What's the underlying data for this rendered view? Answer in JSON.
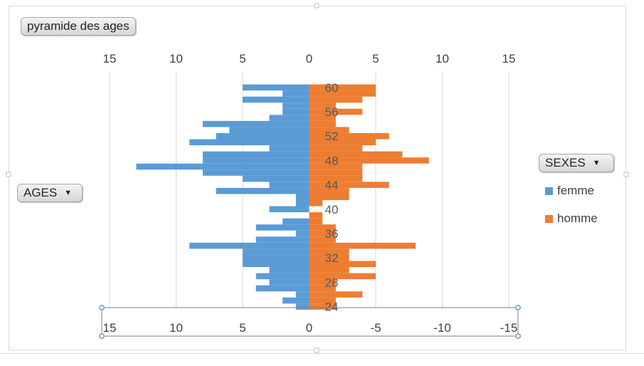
{
  "buttons": {
    "title": "pyramide des ages",
    "ages": "AGES",
    "sexes": "SEXES"
  },
  "legend": [
    {
      "label": "femme",
      "color": "#5B9BD5"
    },
    {
      "label": "homme",
      "color": "#ED7D31"
    }
  ],
  "chart_data": {
    "type": "bar",
    "orientation": "horizontal",
    "categories": [
      24,
      25,
      26,
      27,
      28,
      29,
      30,
      31,
      32,
      33,
      34,
      35,
      36,
      37,
      38,
      39,
      40,
      41,
      42,
      43,
      44,
      45,
      46,
      47,
      48,
      49,
      50,
      51,
      52,
      53,
      54,
      55,
      56,
      57,
      58,
      59,
      60,
      61
    ],
    "series": [
      {
        "name": "femme",
        "color": "#5B9BD5",
        "values": [
          -1,
          -2,
          -1,
          -4,
          -3,
          -4,
          -3,
          -5,
          -5,
          -5,
          -9,
          -4,
          -1,
          -4,
          -2,
          0,
          -3,
          -1,
          -1,
          -7,
          -3,
          -5,
          -8,
          -13,
          -8,
          -8,
          -3,
          -9,
          -7,
          -6,
          -8,
          -3,
          -2,
          -2,
          -5,
          -2,
          -5,
          0
        ]
      },
      {
        "name": "homme",
        "color": "#ED7D31",
        "values": [
          2,
          2,
          4,
          2,
          2,
          5,
          3,
          5,
          3,
          3,
          8,
          2,
          2,
          2,
          1,
          1,
          0,
          1,
          3,
          3,
          6,
          4,
          4,
          4,
          9,
          7,
          4,
          5,
          6,
          3,
          2,
          2,
          4,
          2,
          4,
          5,
          5,
          0
        ]
      }
    ],
    "x_ticks_top": [
      "15",
      "10",
      "5",
      "0",
      "5",
      "10",
      "15"
    ],
    "x_ticks_bottom": [
      "15",
      "10",
      "5",
      "0",
      "-5",
      "-10",
      "-15"
    ],
    "y_tick_labels": [
      "24",
      "28",
      "32",
      "36",
      "40",
      "44",
      "48",
      "52",
      "56",
      "60"
    ],
    "xlim": [
      -15,
      15
    ],
    "grid": true,
    "legend_position": "right"
  }
}
